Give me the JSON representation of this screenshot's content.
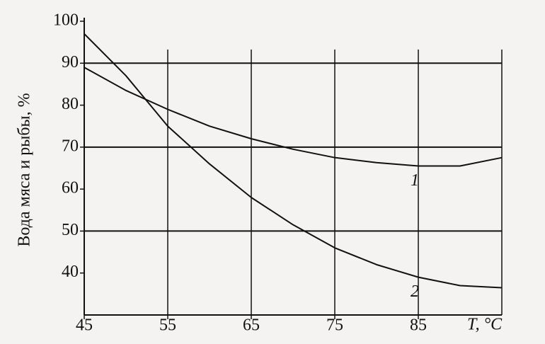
{
  "chart_data": {
    "type": "line",
    "y_label": "Вода мяса и рыбы, %",
    "x_label": "T, °C",
    "x": [
      45,
      50,
      55,
      60,
      65,
      70,
      75,
      80,
      85,
      90,
      95
    ],
    "series": [
      {
        "name": "1",
        "color": "#111111",
        "values": [
          89,
          83.5,
          79,
          75,
          72,
          69.5,
          67.5,
          66.3,
          65.5,
          65.5,
          67.5
        ]
      },
      {
        "name": "2",
        "color": "#111111",
        "values": [
          97,
          87,
          75,
          66,
          58,
          51.5,
          46,
          42,
          39,
          37,
          36.5
        ]
      }
    ],
    "xlim": [
      45,
      95
    ],
    "xticks": [
      45,
      55,
      65,
      75,
      85
    ],
    "ylim": [
      30,
      100
    ],
    "yticks": [
      40,
      50,
      60,
      70,
      80,
      90,
      100
    ],
    "ygrid": [
      50,
      70,
      90
    ],
    "xgrid": [
      55,
      65,
      75,
      85
    ]
  }
}
